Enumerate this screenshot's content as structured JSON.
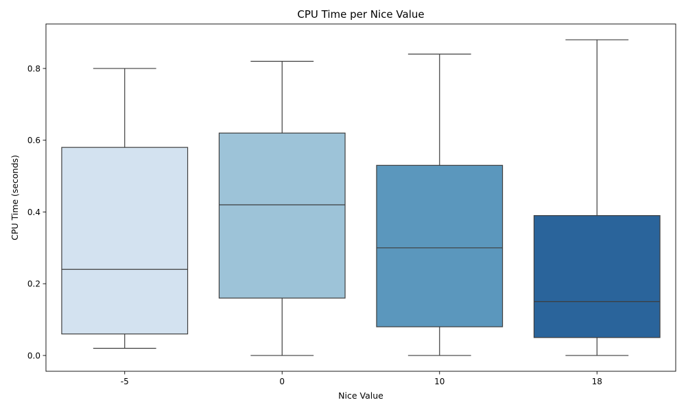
{
  "chart_data": {
    "type": "box",
    "title": "CPU Time per Nice Value",
    "xlabel": "Nice Value",
    "ylabel": "CPU Time (seconds)",
    "categories": [
      "-5",
      "0",
      "10",
      "18"
    ],
    "ylim": [
      -0.044,
      0.924
    ],
    "yticks": [
      0.0,
      0.2,
      0.4,
      0.6,
      0.8
    ],
    "ytick_labels": [
      "0.0",
      "0.2",
      "0.4",
      "0.6",
      "0.8"
    ],
    "grid": false,
    "legend": "none",
    "boxes": [
      {
        "category": "-5",
        "whisker_low": 0.02,
        "q1": 0.06,
        "median": 0.24,
        "q3": 0.58,
        "whisker_high": 0.8,
        "color": "#d3e2f0"
      },
      {
        "category": "0",
        "whisker_low": 0.0,
        "q1": 0.16,
        "median": 0.42,
        "q3": 0.62,
        "whisker_high": 0.82,
        "color": "#9dc3d8"
      },
      {
        "category": "10",
        "whisker_low": 0.0,
        "q1": 0.08,
        "median": 0.3,
        "q3": 0.53,
        "whisker_high": 0.84,
        "color": "#5b97bd"
      },
      {
        "category": "18",
        "whisker_low": 0.0,
        "q1": 0.05,
        "median": 0.15,
        "q3": 0.39,
        "whisker_high": 0.88,
        "color": "#2a649b"
      }
    ]
  }
}
